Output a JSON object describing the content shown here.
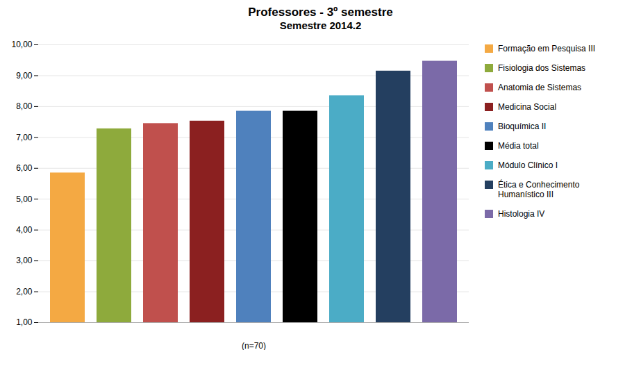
{
  "chart_data": {
    "type": "bar",
    "title": "Professores - 3º semestre",
    "subtitle": "Semestre 2014.2",
    "xlabel": "(n=70)",
    "categories": [
      "Formação em Pesquisa III",
      "Fisiologia dos Sistemas",
      "Anatomia de Sistemas",
      "Medicina Social",
      "Bioquímica II",
      "Média total",
      "Módulo Clínico I",
      "Ética e Conhecimento\nHumanístico III",
      "Histologia IV"
    ],
    "values": [
      5.85,
      7.28,
      7.45,
      7.53,
      7.85,
      7.85,
      8.35,
      9.15,
      9.47
    ],
    "colors": [
      "#F4A943",
      "#8EAA3C",
      "#C0504D",
      "#8B2020",
      "#4F81BD",
      "#000000",
      "#4BACC6",
      "#243F60",
      "#7B6AA8"
    ],
    "ylim": [
      1.0,
      10.0
    ],
    "yticks": [
      {
        "value": 1.0,
        "label": "1,00"
      },
      {
        "value": 2.0,
        "label": "2,00"
      },
      {
        "value": 3.0,
        "label": "3,00"
      },
      {
        "value": 4.0,
        "label": "4,00"
      },
      {
        "value": 5.0,
        "label": "5,00"
      },
      {
        "value": 6.0,
        "label": "6,00"
      },
      {
        "value": 7.0,
        "label": "7,00"
      },
      {
        "value": 8.0,
        "label": "8,00"
      },
      {
        "value": 9.0,
        "label": "9,00"
      },
      {
        "value": 10.0,
        "label": "10,00"
      }
    ],
    "grid": true,
    "legend": "right",
    "tick_labels": "y"
  }
}
